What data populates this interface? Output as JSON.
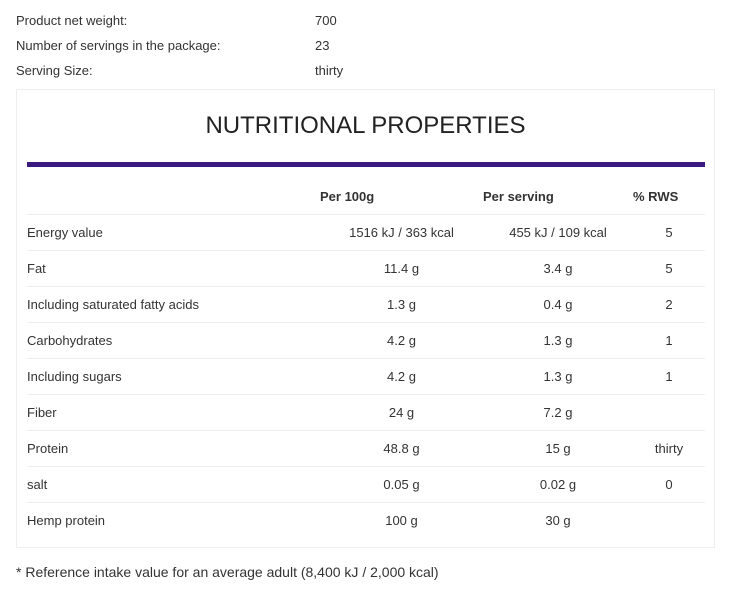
{
  "info": [
    {
      "label": "Product net weight:",
      "value": "700"
    },
    {
      "label": "Number of servings in the package:",
      "value": "23"
    },
    {
      "label": "Serving Size:",
      "value": "thirty"
    }
  ],
  "title": "NUTRITIONAL PROPERTIES",
  "accent_color": "#3a1a7e",
  "headers": [
    "",
    "Per 100g",
    "Per serving",
    "% RWS"
  ],
  "rows": [
    [
      "Energy value",
      "1516 kJ / 363 kcal",
      "455 kJ / 109 kcal",
      "5"
    ],
    [
      "Fat",
      "11.4 g",
      "3.4 g",
      "5"
    ],
    [
      "Including saturated fatty acids",
      "1.3 g",
      "0.4 g",
      "2"
    ],
    [
      "Carbohydrates",
      "4.2 g",
      "1.3 g",
      "1"
    ],
    [
      "Including sugars",
      "4.2 g",
      "1.3 g",
      "1"
    ],
    [
      "Fiber",
      "24 g",
      "7.2 g",
      ""
    ],
    [
      "Protein",
      "48.8 g",
      "15 g",
      "thirty"
    ],
    [
      "salt",
      "0.05 g",
      "0.02 g",
      "0"
    ],
    [
      "Hemp protein",
      "100 g",
      "30 g",
      ""
    ]
  ],
  "footnote": "* Reference intake value for an average adult (8,400 kJ / 2,000 kcal)"
}
